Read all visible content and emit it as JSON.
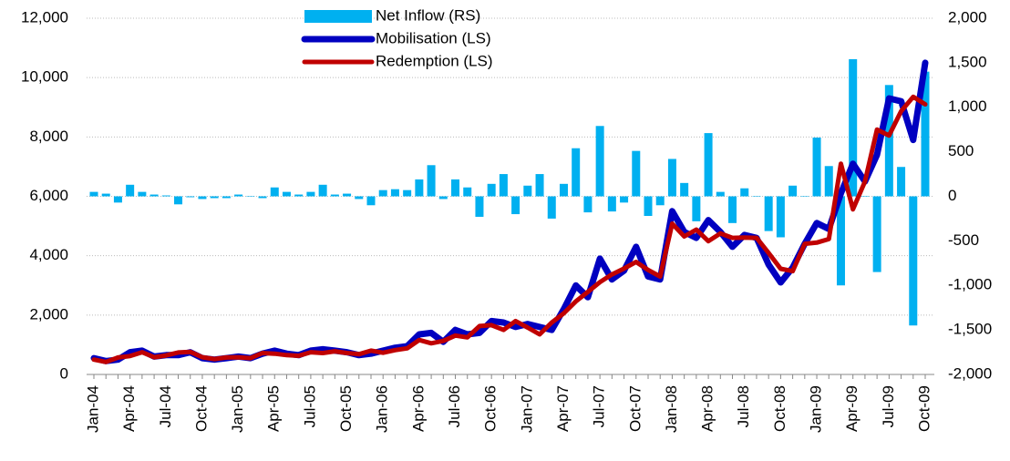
{
  "chart_data": {
    "type": "bar-line",
    "categories": [
      "Jan-04",
      null,
      null,
      "Apr-04",
      null,
      null,
      "Jul-04",
      null,
      null,
      "Oct-04",
      null,
      null,
      "Jan-05",
      null,
      null,
      "Apr-05",
      null,
      null,
      "Jul-05",
      null,
      null,
      "Oct-05",
      null,
      null,
      "Jan-06",
      null,
      null,
      "Apr-06",
      null,
      null,
      "Jul-06",
      null,
      null,
      "Oct-06",
      null,
      null,
      "Jan-07",
      null,
      null,
      "Apr-07",
      null,
      null,
      "Jul-07",
      null,
      null,
      "Oct-07",
      null,
      null,
      "Jan-08",
      null,
      null,
      "Apr-08",
      null,
      null,
      "Jul-08",
      null,
      null,
      "Oct-08",
      null,
      null,
      "Jan-09",
      null,
      null,
      "Apr-09",
      null,
      null,
      "Jul-09",
      null,
      null,
      "Oct-09"
    ],
    "series": [
      {
        "name": "Net Inflow (RS)",
        "type": "bar",
        "axis": "y2",
        "color": "#00b0f0",
        "values": [
          50,
          30,
          -70,
          130,
          50,
          20,
          10,
          -90,
          -10,
          -30,
          -20,
          -20,
          20,
          0,
          -20,
          100,
          50,
          20,
          50,
          130,
          20,
          30,
          -30,
          -100,
          70,
          80,
          70,
          190,
          350,
          -30,
          190,
          100,
          -230,
          140,
          250,
          -200,
          120,
          250,
          -250,
          140,
          540,
          -180,
          790,
          -170,
          -70,
          510,
          -220,
          -100,
          420,
          150,
          -280,
          710,
          50,
          -300,
          90,
          0,
          -390,
          -460,
          120,
          0,
          660,
          340,
          -1000,
          1540,
          0,
          -850,
          1250,
          330,
          -1450,
          1400
        ]
      },
      {
        "name": "Mobilisation (LS)",
        "type": "line",
        "color": "#0000c0",
        "values": [
          550,
          450,
          500,
          750,
          800,
          600,
          650,
          650,
          750,
          550,
          500,
          550,
          600,
          550,
          700,
          800,
          700,
          650,
          800,
          850,
          800,
          750,
          650,
          700,
          800,
          900,
          950,
          1350,
          1400,
          1100,
          1500,
          1350,
          1400,
          1800,
          1750,
          1600,
          1700,
          1600,
          1500,
          2200,
          3000,
          2600,
          3900,
          3200,
          3500,
          4300,
          3300,
          3200,
          5500,
          4800,
          4600,
          5200,
          4800,
          4300,
          4700,
          4600,
          3700,
          3100,
          3600,
          4400,
          5100,
          4900,
          6100,
          7100,
          6500,
          7400,
          9300,
          9200,
          7900,
          10500
        ]
      },
      {
        "name": "Redemption (LS)",
        "type": "line",
        "color": "#c00000",
        "values": [
          500,
          420,
          570,
          620,
          750,
          580,
          640,
          740,
          760,
          580,
          520,
          570,
          580,
          550,
          720,
          700,
          650,
          630,
          750,
          720,
          780,
          720,
          680,
          800,
          730,
          820,
          880,
          1160,
          1050,
          1130,
          1310,
          1250,
          1630,
          1660,
          1500,
          1800,
          1580,
          1350,
          1750,
          2060,
          2460,
          2780,
          3110,
          3370,
          3570,
          3790,
          3520,
          3300,
          5080,
          4650,
          4880,
          4490,
          4750,
          4600,
          4610,
          4600,
          4090,
          3560,
          3480,
          4400,
          4440,
          4560,
          7100,
          5560,
          6500,
          8250,
          8050,
          8870,
          9350,
          9100
        ]
      }
    ],
    "ylim": [
      0,
      12000
    ],
    "yticks": [
      0,
      {
        "value": 2000,
        "label": "2,000"
      },
      {
        "value": 4000,
        "label": "4,000"
      },
      {
        "value": 6000,
        "label": "6,000"
      },
      {
        "value": 8000,
        "label": "8,000"
      },
      {
        "value": 10000,
        "label": "10,000"
      },
      {
        "value": 12000,
        "label": "12,000"
      }
    ],
    "y2lim": [
      -2000,
      2000
    ],
    "y2ticks": [
      {
        "value": -2000,
        "label": "-2,000"
      },
      {
        "value": -1500,
        "label": "-1,500"
      },
      {
        "value": -1000,
        "label": "-1,000"
      },
      -500,
      0,
      500,
      {
        "value": 1000,
        "label": "1,000"
      },
      {
        "value": 1500,
        "label": "1,500"
      },
      {
        "value": 2000,
        "label": "2,000"
      }
    ],
    "grid": true,
    "legend": "top"
  }
}
